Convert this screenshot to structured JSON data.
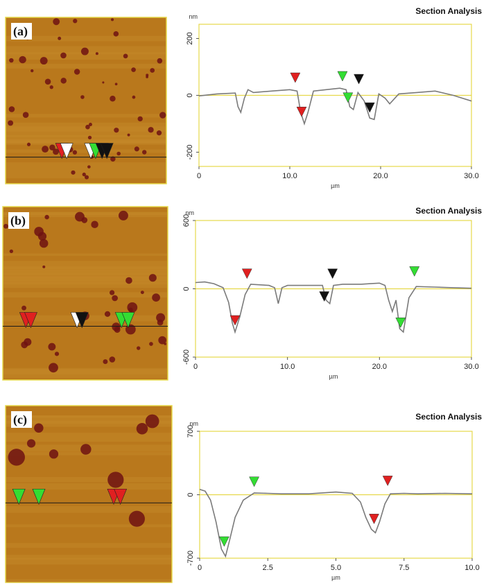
{
  "colors": {
    "afm_base": "#b9781c",
    "afm_stripe": "#c68a2a",
    "pit": "#6e1212",
    "frame": "#e6d84a",
    "trace": "#7a7a7a",
    "zero_line": "#e6d84a",
    "marker_red": "#e02020",
    "marker_green": "#33dd33",
    "marker_black": "#111111",
    "marker_white": "#ffffff",
    "scan_line": "#1a1a1a"
  },
  "chart_data": [
    {
      "type": "line",
      "panel_label": "(a)",
      "title": "Section Analysis",
      "xlabel": "µm",
      "ylabel": "nm",
      "xlim": [
        0,
        30
      ],
      "ylim": [
        -250,
        250
      ],
      "xticks": [
        "0",
        "10.0",
        "20.0",
        "30.0"
      ],
      "xtick_values": [
        0,
        10,
        20,
        30
      ],
      "yticks": [
        "200",
        "0",
        "-200"
      ],
      "ytick_values": [
        200,
        0,
        -200
      ],
      "series": [
        {
          "x": [
            0,
            2,
            4,
            4.3,
            4.6,
            5.0,
            5.4,
            6,
            8,
            10,
            10.8,
            11.2,
            11.6,
            12.0,
            12.6,
            14,
            15.5,
            16.2,
            16.6,
            17.0,
            17.5,
            18.2,
            18.8,
            19.3,
            19.8,
            20.5,
            21.0,
            22,
            24,
            26,
            28,
            29,
            30
          ],
          "y": [
            -2,
            5,
            8,
            -40,
            -60,
            -10,
            20,
            10,
            15,
            20,
            15,
            -60,
            -100,
            -60,
            15,
            20,
            25,
            20,
            -40,
            -50,
            10,
            -20,
            -80,
            -85,
            5,
            -10,
            -30,
            5,
            10,
            15,
            0,
            -10,
            -20
          ]
        }
      ],
      "markers": [
        {
          "x": 10.6,
          "y": 45,
          "color": "red",
          "dir": "down"
        },
        {
          "x": 11.3,
          "y": -75,
          "color": "red",
          "dir": "down"
        },
        {
          "x": 15.8,
          "y": 50,
          "color": "green",
          "dir": "down"
        },
        {
          "x": 16.4,
          "y": -25,
          "color": "green",
          "dir": "down"
        },
        {
          "x": 17.6,
          "y": 40,
          "color": "black",
          "dir": "down"
        },
        {
          "x": 18.8,
          "y": -60,
          "color": "black",
          "dir": "down"
        }
      ],
      "image": {
        "scan_line_y": 0.84,
        "markers": [
          {
            "x": 0.35,
            "color": "red"
          },
          {
            "x": 0.38,
            "color": "white"
          },
          {
            "x": 0.53,
            "color": "white"
          },
          {
            "x": 0.56,
            "color": "green"
          },
          {
            "x": 0.6,
            "color": "black"
          },
          {
            "x": 0.63,
            "color": "black"
          }
        ]
      }
    },
    {
      "type": "line",
      "panel_label": "(b)",
      "title": "Section Analysis",
      "xlabel": "µm",
      "ylabel": "nm",
      "xlim": [
        0,
        30
      ],
      "ylim": [
        -600,
        600
      ],
      "xticks": [
        "0",
        "10.0",
        "20.0",
        "30.0"
      ],
      "xtick_values": [
        0,
        10,
        20,
        30
      ],
      "yticks": [
        "600",
        "0",
        "-600"
      ],
      "ytick_values": [
        600,
        0,
        -600
      ],
      "series": [
        {
          "x": [
            0,
            1,
            2,
            3,
            3.6,
            4.0,
            4.3,
            4.8,
            5.4,
            6,
            8,
            8.6,
            9.0,
            9.4,
            10,
            12,
            13.8,
            14.2,
            14.6,
            15,
            16,
            18,
            19,
            20,
            20.6,
            21.0,
            21.4,
            21.8,
            22.2,
            22.6,
            23.2,
            24,
            26,
            28,
            30
          ],
          "y": [
            55,
            60,
            45,
            10,
            -120,
            -300,
            -380,
            -250,
            -50,
            40,
            30,
            10,
            -130,
            10,
            30,
            30,
            30,
            -100,
            -130,
            30,
            40,
            40,
            45,
            50,
            30,
            -100,
            -200,
            -100,
            -350,
            -380,
            -80,
            20,
            15,
            10,
            5
          ]
        }
      ],
      "markers": [
        {
          "x": 4.3,
          "y": -320,
          "color": "red",
          "dir": "down"
        },
        {
          "x": 5.6,
          "y": 90,
          "color": "red",
          "dir": "down"
        },
        {
          "x": 14.0,
          "y": -110,
          "color": "black",
          "dir": "down"
        },
        {
          "x": 14.9,
          "y": 90,
          "color": "black",
          "dir": "down"
        },
        {
          "x": 22.3,
          "y": -340,
          "color": "green",
          "dir": "down"
        },
        {
          "x": 23.8,
          "y": 110,
          "color": "green",
          "dir": "down"
        }
      ],
      "image": {
        "scan_line_y": 0.69,
        "markers": [
          {
            "x": 0.14,
            "color": "red"
          },
          {
            "x": 0.17,
            "color": "red"
          },
          {
            "x": 0.45,
            "color": "white"
          },
          {
            "x": 0.48,
            "color": "black"
          },
          {
            "x": 0.72,
            "color": "green"
          },
          {
            "x": 0.76,
            "color": "green"
          }
        ]
      }
    },
    {
      "type": "line",
      "panel_label": "(c)",
      "title": "Section Analysis",
      "xlabel": "µm",
      "ylabel": "nm",
      "xlim": [
        0,
        10
      ],
      "ylim": [
        -700,
        700
      ],
      "xticks": [
        "0",
        "2.5",
        "5.0",
        "7.5",
        "10.0"
      ],
      "xtick_values": [
        0,
        2.5,
        5,
        7.5,
        10
      ],
      "yticks": [
        "700",
        "0",
        "-700"
      ],
      "ytick_values": [
        700,
        0,
        -700
      ],
      "series": [
        {
          "x": [
            0,
            0.2,
            0.4,
            0.6,
            0.8,
            0.95,
            1.1,
            1.3,
            1.6,
            2.0,
            2.5,
            3,
            4,
            5,
            5.6,
            5.9,
            6.1,
            6.3,
            6.45,
            6.6,
            6.8,
            7.0,
            7.5,
            8,
            9,
            10
          ],
          "y": [
            60,
            40,
            -60,
            -300,
            -600,
            -680,
            -500,
            -250,
            -60,
            20,
            15,
            10,
            10,
            30,
            15,
            -80,
            -250,
            -380,
            -420,
            -300,
            -100,
            10,
            15,
            10,
            15,
            10
          ]
        }
      ],
      "markers": [
        {
          "x": 0.9,
          "y": -570,
          "color": "green",
          "dir": "down"
        },
        {
          "x": 2.0,
          "y": 90,
          "color": "green",
          "dir": "down"
        },
        {
          "x": 6.4,
          "y": -320,
          "color": "red",
          "dir": "down"
        },
        {
          "x": 6.9,
          "y": 100,
          "color": "red",
          "dir": "down"
        }
      ],
      "image": {
        "scan_line_y": 0.55,
        "markers": [
          {
            "x": 0.08,
            "color": "green"
          },
          {
            "x": 0.2,
            "color": "green"
          },
          {
            "x": 0.65,
            "color": "red"
          },
          {
            "x": 0.69,
            "color": "red"
          }
        ]
      }
    }
  ]
}
